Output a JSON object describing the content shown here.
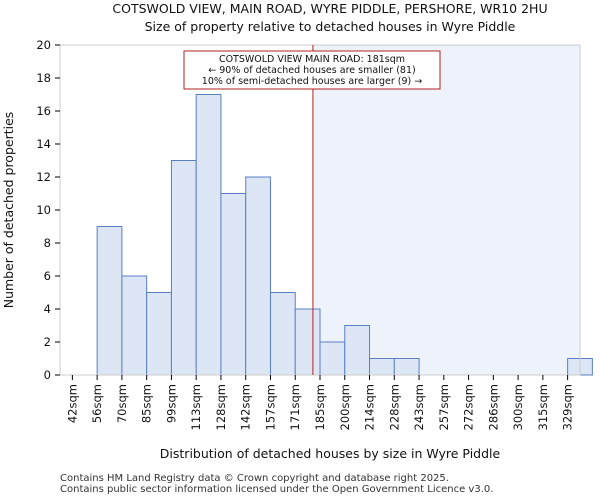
{
  "chart_data": {
    "type": "bar",
    "title": "COTSWOLD VIEW, MAIN ROAD, WYRE PIDDLE, PERSHORE, WR10 2HU",
    "subtitle": "Size of property relative to detached houses in Wyre Piddle",
    "xlabel": "Distribution of detached houses by size in Wyre Piddle",
    "ylabel": "Number of detached properties",
    "categories": [
      "42sqm",
      "56sqm",
      "70sqm",
      "85sqm",
      "99sqm",
      "113sqm",
      "128sqm",
      "142sqm",
      "157sqm",
      "171sqm",
      "185sqm",
      "200sqm",
      "214sqm",
      "228sqm",
      "243sqm",
      "257sqm",
      "272sqm",
      "286sqm",
      "300sqm",
      "315sqm",
      "329sqm"
    ],
    "values": [
      0,
      9,
      6,
      5,
      13,
      17,
      11,
      12,
      5,
      4,
      2,
      3,
      1,
      1,
      0,
      0,
      0,
      0,
      0,
      0,
      1
    ],
    "ylim": [
      0,
      20
    ],
    "yticks": [
      0,
      2,
      4,
      6,
      8,
      10,
      12,
      14,
      16,
      18,
      20
    ],
    "property_size_sqm": 181,
    "annotation": {
      "line1": "COTSWOLD VIEW MAIN ROAD: 181sqm",
      "line2": "← 90% of detached houses are smaller (81)",
      "line3": "10% of semi-detached houses are larger (9) →"
    },
    "colors": {
      "bar_fill": "#dce6f5",
      "bar_stroke": "#5b7fc4",
      "highlight_line": "#b22222",
      "shade": "#eef2fb"
    }
  },
  "footer": {
    "line1": "Contains HM Land Registry data © Crown copyright and database right 2025.",
    "line2": "Contains public sector information licensed under the Open Government Licence v3.0."
  }
}
